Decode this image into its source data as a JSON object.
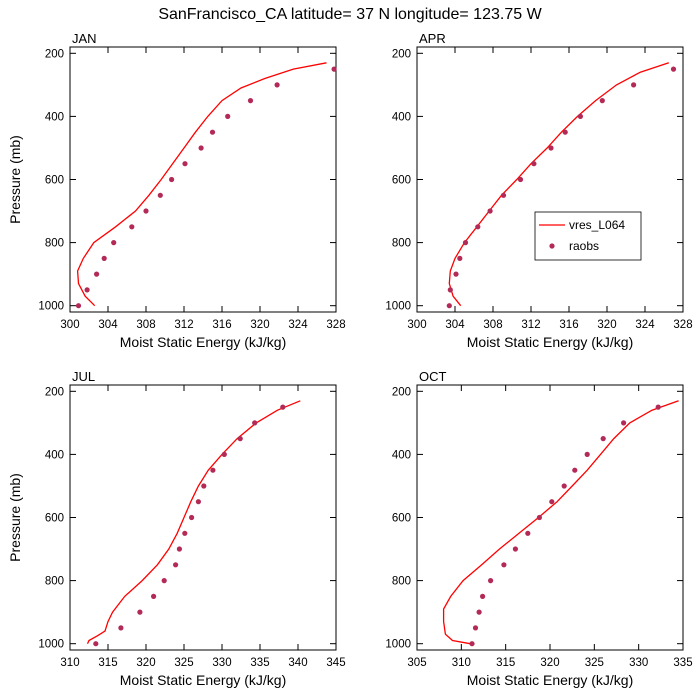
{
  "title": "SanFrancisco_CA  latitude= 37 N longitude= 123.75 W",
  "colors": {
    "model_line": "#ff0000",
    "obs_marker": "#b22a55"
  },
  "legend": {
    "line_label": "vres_L064",
    "marker_label": "raobs",
    "placement": "middle-right of APR panel"
  },
  "chart_data": [
    {
      "panel": "JAN",
      "type": "line+scatter",
      "xlabel": "Moist Static Energy (kJ/kg)",
      "ylabel": "Pressure (mb)",
      "xlim": [
        300,
        328
      ],
      "ylim": [
        1000,
        200
      ],
      "y_inverted": true,
      "grid": false,
      "x_ticks": [
        300,
        304,
        308,
        312,
        316,
        320,
        324,
        328
      ],
      "y_ticks": [
        200,
        400,
        600,
        800,
        1000
      ],
      "series": [
        {
          "name": "vres_L064",
          "kind": "line",
          "points": [
            [
              302.6,
              1000
            ],
            [
              301.6,
              970
            ],
            [
              300.9,
              930
            ],
            [
              300.8,
              890
            ],
            [
              301.4,
              850
            ],
            [
              302.5,
              800
            ],
            [
              304.8,
              750
            ],
            [
              306.9,
              700
            ],
            [
              308.3,
              650
            ],
            [
              309.6,
              600
            ],
            [
              310.8,
              550
            ],
            [
              312.0,
              500
            ],
            [
              313.2,
              450
            ],
            [
              314.5,
              400
            ],
            [
              316.0,
              350
            ],
            [
              318.0,
              310
            ],
            [
              320.5,
              280
            ],
            [
              323.5,
              250
            ],
            [
              327.0,
              230
            ]
          ]
        },
        {
          "name": "raobs",
          "kind": "scatter",
          "points": [
            [
              300.9,
              1000
            ],
            [
              301.8,
              950
            ],
            [
              302.8,
              900
            ],
            [
              303.6,
              850
            ],
            [
              304.6,
              800
            ],
            [
              306.5,
              750
            ],
            [
              308.0,
              700
            ],
            [
              309.5,
              650
            ],
            [
              310.7,
              600
            ],
            [
              312.1,
              550
            ],
            [
              313.8,
              500
            ],
            [
              315.0,
              450
            ],
            [
              316.6,
              400
            ],
            [
              319.0,
              350
            ],
            [
              321.8,
              300
            ],
            [
              327.8,
              250
            ]
          ]
        }
      ]
    },
    {
      "panel": "APR",
      "type": "line+scatter",
      "xlabel": "Moist Static Energy (kJ/kg)",
      "ylabel": "",
      "xlim": [
        300,
        328
      ],
      "ylim": [
        1000,
        200
      ],
      "y_inverted": true,
      "grid": false,
      "x_ticks": [
        300,
        304,
        308,
        312,
        316,
        320,
        324,
        328
      ],
      "y_ticks": [
        200,
        400,
        600,
        800,
        1000
      ],
      "series": [
        {
          "name": "vres_L064",
          "kind": "line",
          "points": [
            [
              304.6,
              1000
            ],
            [
              303.8,
              970
            ],
            [
              303.4,
              930
            ],
            [
              303.5,
              890
            ],
            [
              304.0,
              850
            ],
            [
              305.0,
              800
            ],
            [
              306.3,
              750
            ],
            [
              307.6,
              700
            ],
            [
              308.9,
              650
            ],
            [
              310.5,
              600
            ],
            [
              312.0,
              550
            ],
            [
              313.7,
              500
            ],
            [
              315.2,
              450
            ],
            [
              316.9,
              400
            ],
            [
              318.8,
              350
            ],
            [
              321.0,
              300
            ],
            [
              323.5,
              260
            ],
            [
              326.5,
              230
            ]
          ]
        },
        {
          "name": "raobs",
          "kind": "scatter",
          "points": [
            [
              303.4,
              1000
            ],
            [
              303.5,
              950
            ],
            [
              304.1,
              900
            ],
            [
              304.5,
              850
            ],
            [
              305.1,
              800
            ],
            [
              306.4,
              750
            ],
            [
              307.7,
              700
            ],
            [
              309.1,
              650
            ],
            [
              310.9,
              600
            ],
            [
              312.3,
              550
            ],
            [
              314.1,
              500
            ],
            [
              315.6,
              450
            ],
            [
              317.2,
              400
            ],
            [
              319.5,
              350
            ],
            [
              322.8,
              300
            ],
            [
              327.0,
              250
            ]
          ]
        }
      ]
    },
    {
      "panel": "JUL",
      "type": "line+scatter",
      "xlabel": "Moist Static Energy (kJ/kg)",
      "ylabel": "Pressure (mb)",
      "xlim": [
        310,
        345
      ],
      "ylim": [
        1000,
        200
      ],
      "y_inverted": true,
      "grid": false,
      "x_ticks": [
        310,
        315,
        320,
        325,
        330,
        335,
        340,
        345
      ],
      "y_ticks": [
        200,
        400,
        600,
        800,
        1000
      ],
      "series": [
        {
          "name": "vres_L064",
          "kind": "line",
          "points": [
            [
              312.3,
              1000
            ],
            [
              312.5,
              990
            ],
            [
              313.6,
              975
            ],
            [
              314.6,
              960
            ],
            [
              315.0,
              930
            ],
            [
              315.6,
              900
            ],
            [
              317.2,
              850
            ],
            [
              319.5,
              800
            ],
            [
              321.5,
              750
            ],
            [
              323.0,
              700
            ],
            [
              324.1,
              650
            ],
            [
              325.0,
              600
            ],
            [
              325.9,
              550
            ],
            [
              326.9,
              500
            ],
            [
              328.2,
              450
            ],
            [
              330.0,
              400
            ],
            [
              332.0,
              350
            ],
            [
              334.5,
              300
            ],
            [
              337.3,
              260
            ],
            [
              340.3,
              230
            ]
          ]
        },
        {
          "name": "raobs",
          "kind": "scatter",
          "points": [
            [
              313.4,
              1000
            ],
            [
              316.7,
              950
            ],
            [
              319.2,
              900
            ],
            [
              321.0,
              850
            ],
            [
              322.4,
              800
            ],
            [
              323.9,
              750
            ],
            [
              324.4,
              700
            ],
            [
              325.1,
              650
            ],
            [
              326.0,
              600
            ],
            [
              326.9,
              550
            ],
            [
              327.6,
              500
            ],
            [
              328.8,
              450
            ],
            [
              330.3,
              400
            ],
            [
              332.4,
              350
            ],
            [
              334.3,
              300
            ],
            [
              338.0,
              250
            ]
          ]
        }
      ]
    },
    {
      "panel": "OCT",
      "type": "line+scatter",
      "xlabel": "Moist Static Energy (kJ/kg)",
      "ylabel": "",
      "xlim": [
        305,
        335
      ],
      "ylim": [
        1000,
        200
      ],
      "y_inverted": true,
      "grid": false,
      "x_ticks": [
        305,
        310,
        315,
        320,
        325,
        330,
        335
      ],
      "y_ticks": [
        200,
        400,
        600,
        800,
        1000
      ],
      "series": [
        {
          "name": "vres_L064",
          "kind": "line",
          "points": [
            [
              311.0,
              1000
            ],
            [
              309.0,
              990
            ],
            [
              308.2,
              970
            ],
            [
              308.0,
              930
            ],
            [
              308.0,
              890
            ],
            [
              308.8,
              850
            ],
            [
              310.2,
              800
            ],
            [
              312.3,
              750
            ],
            [
              314.3,
              700
            ],
            [
              316.5,
              650
            ],
            [
              318.7,
              600
            ],
            [
              320.8,
              550
            ],
            [
              322.5,
              500
            ],
            [
              324.2,
              450
            ],
            [
              325.7,
              400
            ],
            [
              327.2,
              350
            ],
            [
              329.0,
              300
            ],
            [
              331.5,
              260
            ],
            [
              334.5,
              230
            ]
          ]
        },
        {
          "name": "raobs",
          "kind": "scatter",
          "points": [
            [
              311.2,
              1000
            ],
            [
              311.6,
              950
            ],
            [
              312.0,
              900
            ],
            [
              312.4,
              850
            ],
            [
              313.3,
              800
            ],
            [
              314.8,
              750
            ],
            [
              316.1,
              700
            ],
            [
              317.5,
              650
            ],
            [
              318.8,
              600
            ],
            [
              320.2,
              550
            ],
            [
              321.6,
              500
            ],
            [
              322.8,
              450
            ],
            [
              324.2,
              400
            ],
            [
              326.0,
              350
            ],
            [
              328.3,
              300
            ],
            [
              332.2,
              250
            ]
          ]
        }
      ]
    }
  ]
}
